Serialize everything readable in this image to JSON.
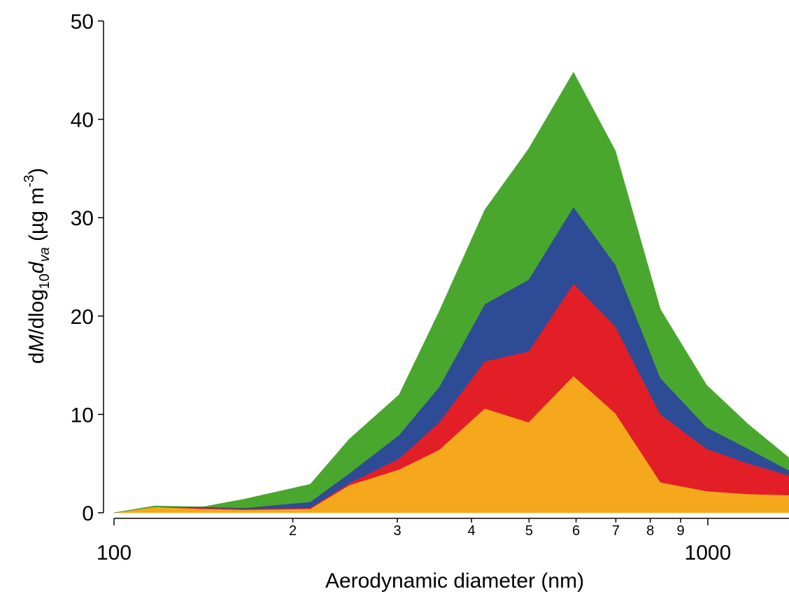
{
  "chart_data": {
    "type": "stacked_area",
    "x_label": "Aerodynamic diameter (nm)",
    "y_label_parts": [
      "d",
      "M",
      "/dlog",
      "10",
      "d",
      "va",
      " (µg m",
      "-3",
      ")"
    ],
    "x": [
      100,
      117,
      141,
      166,
      214,
      249,
      302,
      353,
      421,
      499,
      594,
      699,
      832,
      995,
      1170,
      1370
    ],
    "series": [
      {
        "color": "#f5a81c",
        "values": [
          0,
          0.6,
          0.4,
          0.3,
          0.4,
          2.8,
          4.4,
          6.4,
          10.6,
          9.2,
          13.9,
          10.1,
          3.1,
          2.2,
          1.9,
          1.8
        ]
      },
      {
        "color": "#e21f26",
        "values": [
          0,
          0,
          0.1,
          0.1,
          0.1,
          0.2,
          1.1,
          2.8,
          4.8,
          7.2,
          9.4,
          8.8,
          6.9,
          4.3,
          3.1,
          2.0
        ]
      },
      {
        "color": "#2e4b96",
        "values": [
          0,
          0,
          0.1,
          0.1,
          0.6,
          1.0,
          2.4,
          3.6,
          5.8,
          7.3,
          7.8,
          6.3,
          3.7,
          2.2,
          1.5,
          0.5
        ]
      },
      {
        "color": "#4aa72e",
        "values": [
          0,
          0.1,
          0,
          0.9,
          1.8,
          3.5,
          4.1,
          7.7,
          9.6,
          13.3,
          13.7,
          11.6,
          7.0,
          4.3,
          2.5,
          1.3
        ]
      }
    ],
    "log_x": true,
    "xlim": [
      100,
      1370
    ],
    "xticks": [
      100,
      {
        "value": 200,
        "label": "2"
      },
      {
        "value": 300,
        "label": "3"
      },
      {
        "value": 400,
        "label": "4"
      },
      {
        "value": 500,
        "label": "5"
      },
      {
        "value": 600,
        "label": "6"
      },
      {
        "value": 700,
        "label": "7"
      },
      {
        "value": 800,
        "label": "8"
      },
      {
        "value": 900,
        "label": "9"
      },
      1000
    ],
    "ylim": [
      0,
      50
    ],
    "yticks": [
      0,
      10,
      20,
      30,
      40,
      50
    ]
  }
}
